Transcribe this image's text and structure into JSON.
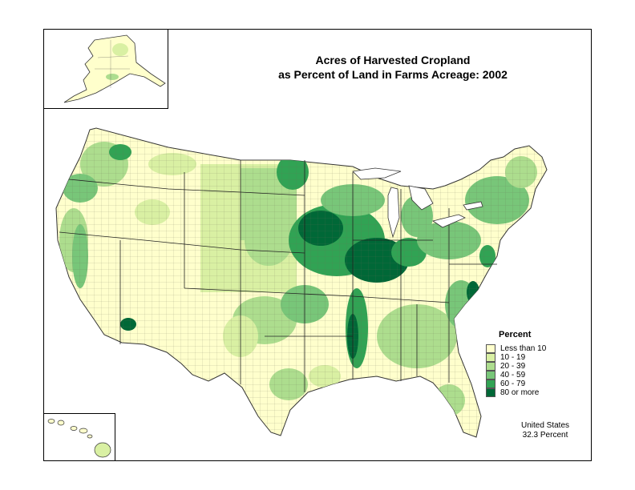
{
  "title": {
    "line1": "Acres of Harvested Cropland",
    "line2": "as Percent of Land in Farms Acreage:  2002"
  },
  "legend": {
    "title": "Percent",
    "classes": [
      {
        "label": "Less than 10",
        "color": "#ffffcc"
      },
      {
        "label": "10 - 19",
        "color": "#d9f0a3"
      },
      {
        "label": "20 - 39",
        "color": "#addd8e"
      },
      {
        "label": "40 - 59",
        "color": "#78c679"
      },
      {
        "label": "60 - 79",
        "color": "#31a354"
      },
      {
        "label": "80 or more",
        "color": "#006837"
      }
    ]
  },
  "summary": {
    "region": "United States",
    "value": "32.3 Percent"
  }
}
